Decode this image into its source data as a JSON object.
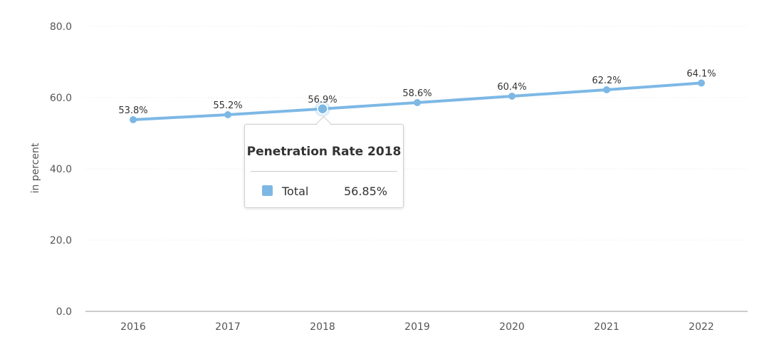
{
  "chart_data": {
    "type": "line",
    "x": [
      "2016",
      "2017",
      "2018",
      "2019",
      "2020",
      "2021",
      "2022"
    ],
    "series": [
      {
        "name": "Total",
        "values": [
          53.8,
          55.2,
          56.85,
          58.6,
          60.4,
          62.2,
          64.1
        ],
        "labels": [
          "53.8%",
          "55.2%",
          "56.9%",
          "58.6%",
          "60.4%",
          "62.2%",
          "64.1%"
        ]
      }
    ],
    "ylabel": "in percent",
    "ylim": [
      0,
      80
    ],
    "yticks": [
      "0.0",
      "20.0",
      "40.0",
      "60.0",
      "80.0"
    ],
    "grid": true,
    "highlight_index": 2,
    "line_color": "#7db8e5"
  },
  "tooltip": {
    "title": "Penetration Rate 2018",
    "series_label": "Total",
    "value": "56.85%",
    "swatch_color": "#7db8e5"
  }
}
